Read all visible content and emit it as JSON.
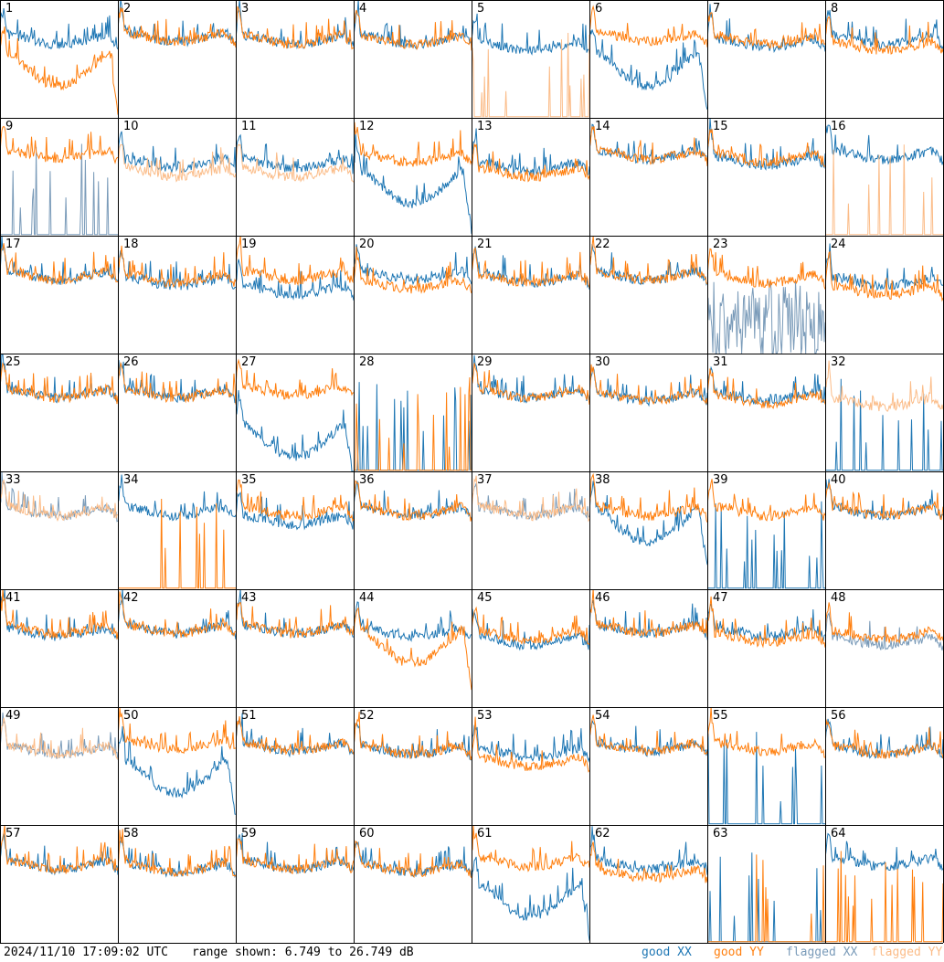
{
  "footer": {
    "timestamp": "2024/11/10 17:09:02 UTC",
    "range_text": "range shown: 6.749 to 26.749 dB",
    "legend": {
      "good_xx": "good XX",
      "good_yy": "good YY",
      "flagged_xx": "flagged XX",
      "flagged_yy": "flagged YY"
    }
  },
  "colors": {
    "good_xx": "#1f77b4",
    "good_yy": "#ff7f0e",
    "flagged_xx": "#7a9bb9",
    "flagged_yy": "#fbbc88"
  },
  "chart_data": {
    "type": "line",
    "grid_layout": [
      8,
      8
    ],
    "ylim": [
      6.749,
      26.749
    ],
    "series_kinds": [
      "XX",
      "YY"
    ],
    "tiles": [
      {
        "id": "1",
        "xx": {
          "level": 20,
          "status": "good",
          "shape": "normal"
        },
        "yy": {
          "level": 17,
          "status": "good",
          "shape": "dip"
        }
      },
      {
        "id": "2",
        "xx": {
          "level": 20.5,
          "status": "good",
          "shape": "normal"
        },
        "yy": {
          "level": 20.5,
          "status": "good",
          "shape": "normal"
        }
      },
      {
        "id": "3",
        "xx": {
          "level": 20,
          "status": "good",
          "shape": "normal"
        },
        "yy": {
          "level": 20,
          "status": "good",
          "shape": "normal"
        }
      },
      {
        "id": "4",
        "xx": {
          "level": 20,
          "status": "good",
          "shape": "normal"
        },
        "yy": {
          "level": 20,
          "status": "good",
          "shape": "normal"
        }
      },
      {
        "id": "5",
        "xx": {
          "level": 19,
          "status": "good",
          "shape": "normal"
        },
        "yy": {
          "level": 6.749,
          "status": "flagged",
          "shape": "spikes"
        }
      },
      {
        "id": "6",
        "xx": {
          "level": 17,
          "status": "good",
          "shape": "dip"
        },
        "yy": {
          "level": 20.5,
          "status": "good",
          "shape": "normal"
        }
      },
      {
        "id": "7",
        "xx": {
          "level": 19.5,
          "status": "good",
          "shape": "normal"
        },
        "yy": {
          "level": 20,
          "status": "good",
          "shape": "normal"
        }
      },
      {
        "id": "8",
        "xx": {
          "level": 20,
          "status": "good",
          "shape": "normal"
        },
        "yy": {
          "level": 19,
          "status": "good",
          "shape": "normal"
        }
      },
      {
        "id": "9",
        "xx": {
          "level": 6.749,
          "status": "flagged",
          "shape": "spikes"
        },
        "yy": {
          "level": 20.5,
          "status": "good",
          "shape": "normal"
        }
      },
      {
        "id": "10",
        "xx": {
          "level": 19,
          "status": "good",
          "shape": "normal"
        },
        "yy": {
          "level": 17.5,
          "status": "flagged",
          "shape": "normal"
        }
      },
      {
        "id": "11",
        "xx": {
          "level": 19,
          "status": "good",
          "shape": "normal"
        },
        "yy": {
          "level": 17.5,
          "status": "flagged",
          "shape": "normal"
        }
      },
      {
        "id": "12",
        "xx": {
          "level": 17,
          "status": "good",
          "shape": "dip"
        },
        "yy": {
          "level": 20,
          "status": "good",
          "shape": "normal"
        }
      },
      {
        "id": "13",
        "xx": {
          "level": 18.5,
          "status": "good",
          "shape": "normal"
        },
        "yy": {
          "level": 17.5,
          "status": "good",
          "shape": "normal"
        }
      },
      {
        "id": "14",
        "xx": {
          "level": 20.5,
          "status": "good",
          "shape": "normal"
        },
        "yy": {
          "level": 20.5,
          "status": "good",
          "shape": "normal"
        }
      },
      {
        "id": "15",
        "xx": {
          "level": 19.5,
          "status": "good",
          "shape": "normal"
        },
        "yy": {
          "level": 20,
          "status": "good",
          "shape": "normal"
        }
      },
      {
        "id": "16",
        "xx": {
          "level": 20.5,
          "status": "good",
          "shape": "normal"
        },
        "yy": {
          "level": 6.749,
          "status": "flagged",
          "shape": "spikes"
        }
      },
      {
        "id": "17",
        "xx": {
          "level": 20,
          "status": "good",
          "shape": "normal"
        },
        "yy": {
          "level": 20,
          "status": "good",
          "shape": "normal"
        }
      },
      {
        "id": "18",
        "xx": {
          "level": 19,
          "status": "good",
          "shape": "normal"
        },
        "yy": {
          "level": 19.5,
          "status": "good",
          "shape": "normal"
        }
      },
      {
        "id": "19",
        "xx": {
          "level": 17.5,
          "status": "good",
          "shape": "normal"
        },
        "yy": {
          "level": 20,
          "status": "good",
          "shape": "normal"
        }
      },
      {
        "id": "20",
        "xx": {
          "level": 20,
          "status": "good",
          "shape": "normal"
        },
        "yy": {
          "level": 18.5,
          "status": "good",
          "shape": "normal"
        }
      },
      {
        "id": "21",
        "xx": {
          "level": 19.5,
          "status": "good",
          "shape": "normal"
        },
        "yy": {
          "level": 19.5,
          "status": "good",
          "shape": "normal"
        }
      },
      {
        "id": "22",
        "xx": {
          "level": 20,
          "status": "good",
          "shape": "normal"
        },
        "yy": {
          "level": 20,
          "status": "good",
          "shape": "normal"
        }
      },
      {
        "id": "23",
        "xx": {
          "level": 12,
          "status": "flagged",
          "shape": "noisy"
        },
        "yy": {
          "level": 19.5,
          "status": "good",
          "shape": "normal"
        }
      },
      {
        "id": "24",
        "xx": {
          "level": 19,
          "status": "good",
          "shape": "normal"
        },
        "yy": {
          "level": 17.5,
          "status": "good",
          "shape": "normal"
        }
      },
      {
        "id": "25",
        "xx": {
          "level": 20,
          "status": "good",
          "shape": "normal"
        },
        "yy": {
          "level": 20,
          "status": "good",
          "shape": "normal"
        }
      },
      {
        "id": "26",
        "xx": {
          "level": 20,
          "status": "good",
          "shape": "normal"
        },
        "yy": {
          "level": 20,
          "status": "good",
          "shape": "normal"
        }
      },
      {
        "id": "27",
        "xx": {
          "level": 14,
          "status": "good",
          "shape": "dip"
        },
        "yy": {
          "level": 20.5,
          "status": "good",
          "shape": "normal"
        }
      },
      {
        "id": "28",
        "xx": {
          "level": 6.749,
          "status": "good",
          "shape": "spikes"
        },
        "yy": {
          "level": 6.749,
          "status": "good",
          "shape": "spikes"
        }
      },
      {
        "id": "29",
        "xx": {
          "level": 20,
          "status": "good",
          "shape": "normal"
        },
        "yy": {
          "level": 20,
          "status": "good",
          "shape": "normal"
        }
      },
      {
        "id": "30",
        "xx": {
          "level": 19.5,
          "status": "good",
          "shape": "normal"
        },
        "yy": {
          "level": 19.5,
          "status": "good",
          "shape": "normal"
        }
      },
      {
        "id": "31",
        "xx": {
          "level": 19.5,
          "status": "good",
          "shape": "normal"
        },
        "yy": {
          "level": 19,
          "status": "good",
          "shape": "normal"
        }
      },
      {
        "id": "32",
        "xx": {
          "level": 6.749,
          "status": "good",
          "shape": "spikes"
        },
        "yy": {
          "level": 18.5,
          "status": "flagged",
          "shape": "normal"
        }
      },
      {
        "id": "33",
        "xx": {
          "level": 20,
          "status": "flagged",
          "shape": "normal"
        },
        "yy": {
          "level": 20,
          "status": "flagged",
          "shape": "normal"
        }
      },
      {
        "id": "34",
        "xx": {
          "level": 20,
          "status": "good",
          "shape": "normal"
        },
        "yy": {
          "level": 6.749,
          "status": "good",
          "shape": "spikes"
        }
      },
      {
        "id": "35",
        "xx": {
          "level": 18.5,
          "status": "good",
          "shape": "normal"
        },
        "yy": {
          "level": 20,
          "status": "good",
          "shape": "normal"
        }
      },
      {
        "id": "36",
        "xx": {
          "level": 20,
          "status": "good",
          "shape": "normal"
        },
        "yy": {
          "level": 20,
          "status": "good",
          "shape": "normal"
        }
      },
      {
        "id": "37",
        "xx": {
          "level": 20,
          "status": "flagged",
          "shape": "normal"
        },
        "yy": {
          "level": 20,
          "status": "flagged",
          "shape": "normal"
        }
      },
      {
        "id": "38",
        "xx": {
          "level": 19.5,
          "status": "good",
          "shape": "dip"
        },
        "yy": {
          "level": 20,
          "status": "good",
          "shape": "normal"
        }
      },
      {
        "id": "39",
        "xx": {
          "level": 6.749,
          "status": "good",
          "shape": "spikes"
        },
        "yy": {
          "level": 20,
          "status": "good",
          "shape": "normal"
        }
      },
      {
        "id": "40",
        "xx": {
          "level": 20,
          "status": "good",
          "shape": "normal"
        },
        "yy": {
          "level": 20,
          "status": "good",
          "shape": "normal"
        }
      },
      {
        "id": "41",
        "xx": {
          "level": 19.5,
          "status": "good",
          "shape": "normal"
        },
        "yy": {
          "level": 20,
          "status": "good",
          "shape": "normal"
        }
      },
      {
        "id": "42",
        "xx": {
          "level": 20,
          "status": "good",
          "shape": "normal"
        },
        "yy": {
          "level": 20,
          "status": "good",
          "shape": "normal"
        }
      },
      {
        "id": "43",
        "xx": {
          "level": 20,
          "status": "good",
          "shape": "normal"
        },
        "yy": {
          "level": 20,
          "status": "good",
          "shape": "normal"
        }
      },
      {
        "id": "44",
        "xx": {
          "level": 19.5,
          "status": "good",
          "shape": "normal"
        },
        "yy": {
          "level": 19,
          "status": "good",
          "shape": "dip"
        }
      },
      {
        "id": "45",
        "xx": {
          "level": 18,
          "status": "good",
          "shape": "normal"
        },
        "yy": {
          "level": 19,
          "status": "good",
          "shape": "normal"
        }
      },
      {
        "id": "46",
        "xx": {
          "level": 20,
          "status": "good",
          "shape": "normal"
        },
        "yy": {
          "level": 20,
          "status": "good",
          "shape": "normal"
        }
      },
      {
        "id": "47",
        "xx": {
          "level": 19.5,
          "status": "good",
          "shape": "normal"
        },
        "yy": {
          "level": 18.5,
          "status": "good",
          "shape": "normal"
        }
      },
      {
        "id": "48",
        "xx": {
          "level": 18,
          "status": "flagged",
          "shape": "normal"
        },
        "yy": {
          "level": 19,
          "status": "good",
          "shape": "normal"
        }
      },
      {
        "id": "49",
        "xx": {
          "level": 19.5,
          "status": "flagged",
          "shape": "normal"
        },
        "yy": {
          "level": 19.5,
          "status": "flagged",
          "shape": "normal"
        }
      },
      {
        "id": "50",
        "xx": {
          "level": 17,
          "status": "good",
          "shape": "dip"
        },
        "yy": {
          "level": 20.5,
          "status": "good",
          "shape": "normal"
        }
      },
      {
        "id": "51",
        "xx": {
          "level": 20,
          "status": "good",
          "shape": "normal"
        },
        "yy": {
          "level": 20,
          "status": "good",
          "shape": "normal"
        }
      },
      {
        "id": "52",
        "xx": {
          "level": 19.5,
          "status": "good",
          "shape": "normal"
        },
        "yy": {
          "level": 19.5,
          "status": "good",
          "shape": "normal"
        }
      },
      {
        "id": "53",
        "xx": {
          "level": 19,
          "status": "good",
          "shape": "normal"
        },
        "yy": {
          "level": 17.5,
          "status": "good",
          "shape": "normal"
        }
      },
      {
        "id": "54",
        "xx": {
          "level": 20,
          "status": "good",
          "shape": "normal"
        },
        "yy": {
          "level": 20,
          "status": "good",
          "shape": "normal"
        }
      },
      {
        "id": "55",
        "xx": {
          "level": 6.749,
          "status": "good",
          "shape": "spikes"
        },
        "yy": {
          "level": 20,
          "status": "good",
          "shape": "normal"
        }
      },
      {
        "id": "56",
        "xx": {
          "level": 19.5,
          "status": "good",
          "shape": "normal"
        },
        "yy": {
          "level": 19.5,
          "status": "good",
          "shape": "normal"
        }
      },
      {
        "id": "57",
        "xx": {
          "level": 20,
          "status": "good",
          "shape": "normal"
        },
        "yy": {
          "level": 20,
          "status": "good",
          "shape": "normal"
        }
      },
      {
        "id": "58",
        "xx": {
          "level": 19.5,
          "status": "good",
          "shape": "normal"
        },
        "yy": {
          "level": 19.5,
          "status": "good",
          "shape": "normal"
        }
      },
      {
        "id": "59",
        "xx": {
          "level": 20,
          "status": "good",
          "shape": "normal"
        },
        "yy": {
          "level": 20,
          "status": "good",
          "shape": "normal"
        }
      },
      {
        "id": "60",
        "xx": {
          "level": 19.5,
          "status": "good",
          "shape": "normal"
        },
        "yy": {
          "level": 19.5,
          "status": "good",
          "shape": "normal"
        }
      },
      {
        "id": "61",
        "xx": {
          "level": 16,
          "status": "good",
          "shape": "dip"
        },
        "yy": {
          "level": 20.5,
          "status": "good",
          "shape": "normal"
        }
      },
      {
        "id": "62",
        "xx": {
          "level": 20,
          "status": "good",
          "shape": "normal"
        },
        "yy": {
          "level": 18.5,
          "status": "good",
          "shape": "normal"
        }
      },
      {
        "id": "63",
        "xx": {
          "level": 6.749,
          "status": "good",
          "shape": "spikes"
        },
        "yy": {
          "level": 6.749,
          "status": "good",
          "shape": "spikes"
        }
      },
      {
        "id": "64",
        "xx": {
          "level": 20.5,
          "status": "good",
          "shape": "normal"
        },
        "yy": {
          "level": 6.749,
          "status": "good",
          "shape": "spikes"
        }
      }
    ]
  }
}
